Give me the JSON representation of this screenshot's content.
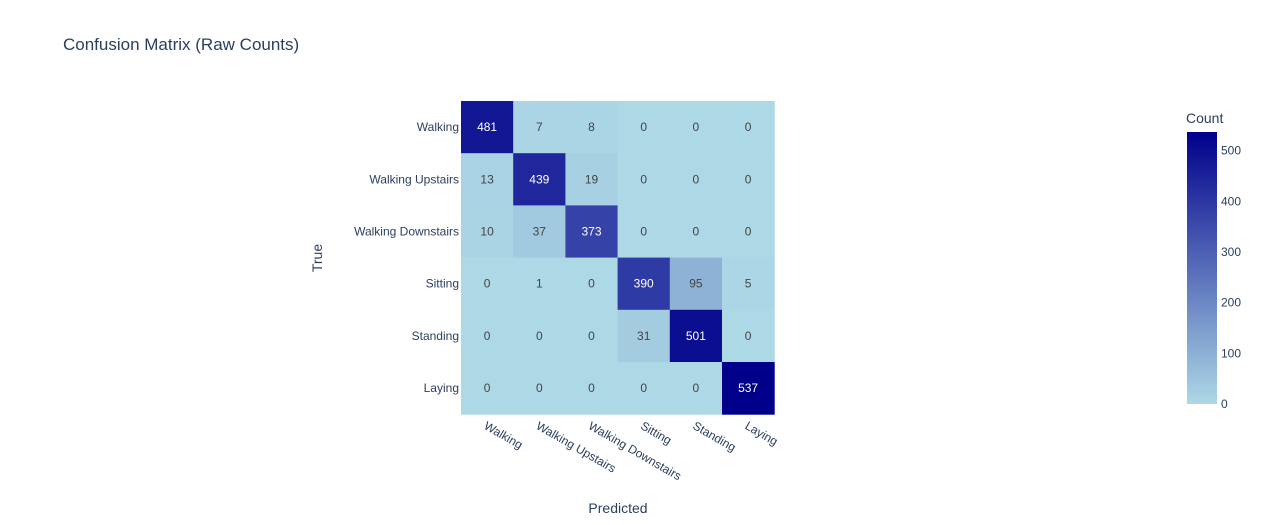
{
  "chart_data": {
    "type": "heatmap",
    "title": "Confusion Matrix (Raw Counts)",
    "xlabel": "Predicted",
    "ylabel": "True",
    "x_categories": [
      "Walking",
      "Walking Upstairs",
      "Walking Downstairs",
      "Sitting",
      "Standing",
      "Laying"
    ],
    "y_categories": [
      "Walking",
      "Walking Upstairs",
      "Walking Downstairs",
      "Sitting",
      "Standing",
      "Laying"
    ],
    "z": [
      [
        481,
        7,
        8,
        0,
        0,
        0
      ],
      [
        13,
        439,
        19,
        0,
        0,
        0
      ],
      [
        10,
        37,
        373,
        0,
        0,
        0
      ],
      [
        0,
        1,
        0,
        390,
        95,
        5
      ],
      [
        0,
        0,
        0,
        31,
        501,
        0
      ],
      [
        0,
        0,
        0,
        0,
        0,
        537
      ]
    ],
    "colorscale": [
      "#add8e6",
      "#00008b"
    ],
    "zrange": [
      0,
      537
    ],
    "colorbar": {
      "title": "Count",
      "ticks": [
        "0",
        "100",
        "200",
        "300",
        "400",
        "500"
      ]
    }
  }
}
